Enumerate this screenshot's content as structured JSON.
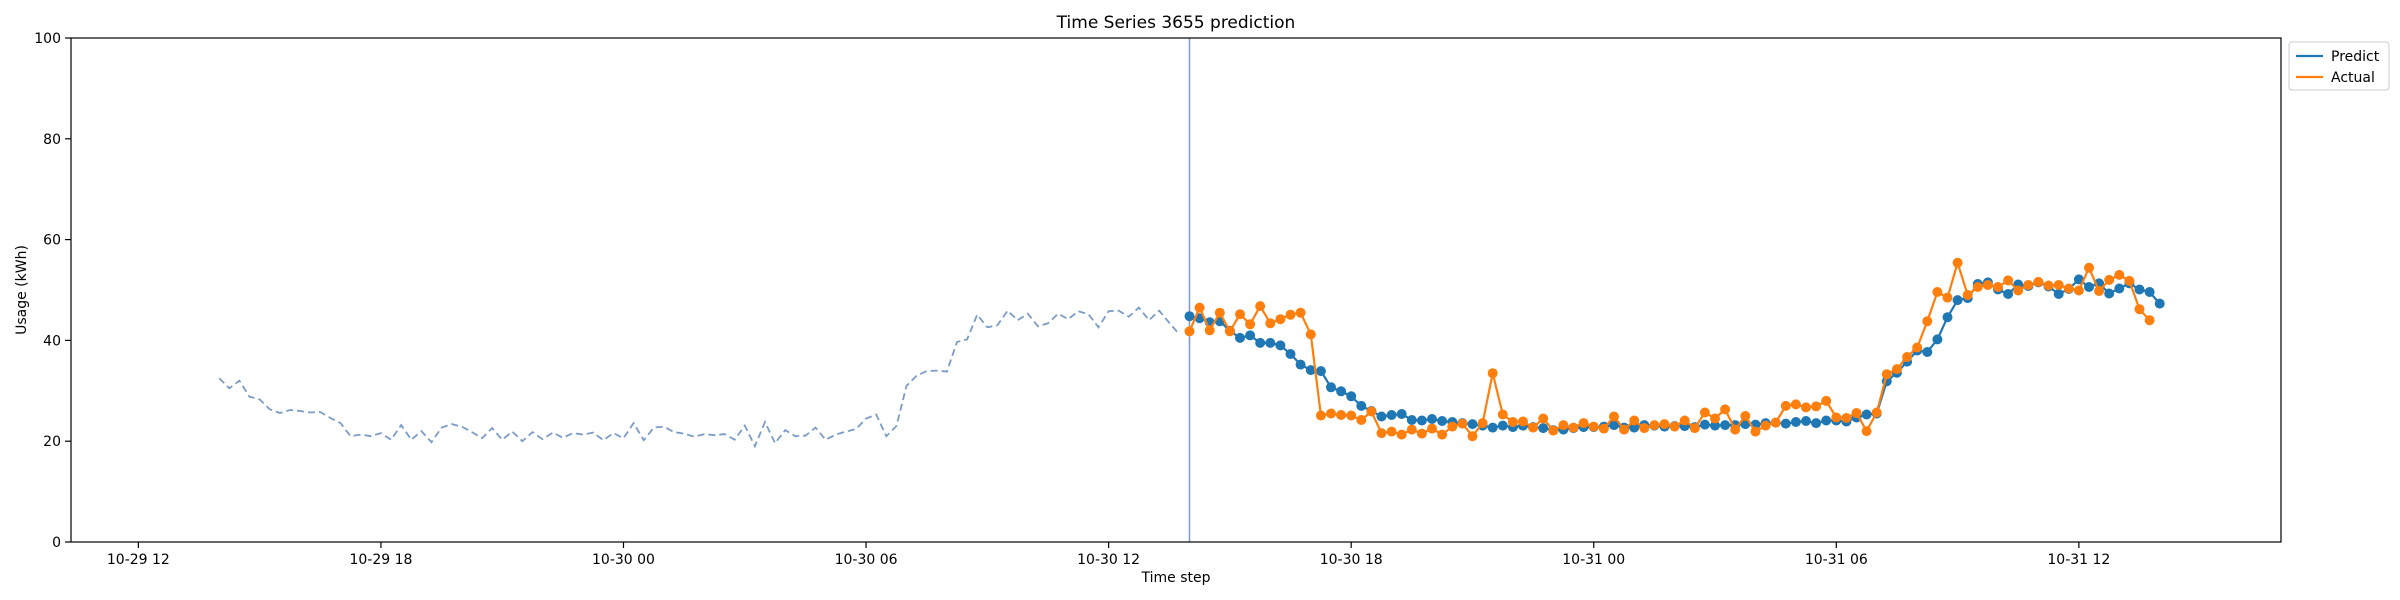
{
  "chart_data": {
    "type": "line",
    "title": "Time Series 3655 prediction",
    "xlabel": "Time step",
    "ylabel": "Usage (kWh)",
    "ylim": [
      0,
      100
    ],
    "yticks": [
      0,
      20,
      40,
      60,
      80,
      100
    ],
    "xlim": [
      "2024-10-29 10:20",
      "2024-10-31 17:00"
    ],
    "xticks": [
      {
        "t": "2024-10-29 12:00",
        "label": "10-29 12"
      },
      {
        "t": "2024-10-29 18:00",
        "label": "10-29 18"
      },
      {
        "t": "2024-10-30 00:00",
        "label": "10-30 00"
      },
      {
        "t": "2024-10-30 06:00",
        "label": "10-30 06"
      },
      {
        "t": "2024-10-30 12:00",
        "label": "10-30 12"
      },
      {
        "t": "2024-10-30 18:00",
        "label": "10-30 18"
      },
      {
        "t": "2024-10-31 00:00",
        "label": "10-31 00"
      },
      {
        "t": "2024-10-31 06:00",
        "label": "10-31 06"
      },
      {
        "t": "2024-10-31 12:00",
        "label": "10-31 12"
      }
    ],
    "grid": false,
    "legend": "top-right outside",
    "forecast_start": "2024-10-30 14:00",
    "step_minutes": 15,
    "history": {
      "start": "2024-10-29 14:00",
      "color": "#7a9cc6",
      "style": "dashed",
      "values": [
        32.5,
        30.5,
        32.0,
        28.8,
        28.3,
        26.3,
        25.6,
        26.2,
        26.0,
        25.7,
        25.8,
        24.6,
        23.6,
        21.0,
        21.3,
        21.0,
        21.6,
        20.3,
        23.2,
        20.3,
        22.0,
        19.8,
        22.7,
        23.4,
        22.9,
        21.8,
        20.6,
        22.6,
        20.3,
        21.9,
        20.0,
        21.8,
        20.4,
        21.7,
        20.7,
        21.6,
        21.3,
        21.7,
        20.2,
        21.6,
        20.6,
        23.6,
        20.2,
        22.7,
        22.9,
        21.8,
        21.5,
        20.9,
        21.4,
        21.2,
        21.4,
        20.3,
        23.1,
        19.0,
        23.8,
        19.6,
        22.2,
        21.0,
        21.1,
        22.7,
        20.3,
        21.3,
        21.9,
        22.4,
        24.5,
        25.3,
        21.0,
        23.0,
        31.0,
        33.0,
        33.9,
        34.0,
        33.8,
        39.7,
        40.2,
        45.1,
        42.6,
        43.0,
        45.9,
        44.0,
        45.3,
        42.8,
        43.4,
        45.3,
        44.2,
        45.8,
        45.2,
        42.6,
        45.8,
        45.9,
        44.7,
        46.5,
        44.0,
        45.9,
        43.5,
        41.2
      ]
    },
    "series": [
      {
        "name": "Predict",
        "color": "#1f77b4",
        "start": "2024-10-30 14:00",
        "values": [
          44.8,
          44.4,
          43.6,
          43.8,
          41.9,
          40.5,
          41.0,
          39.5,
          39.5,
          39.0,
          37.3,
          35.2,
          34.1,
          33.9,
          30.7,
          29.9,
          28.9,
          27.0,
          26.0,
          24.9,
          25.2,
          25.4,
          24.2,
          24.1,
          24.4,
          24.0,
          23.8,
          23.6,
          23.4,
          23.1,
          22.7,
          23.1,
          22.8,
          23.1,
          22.8,
          22.6,
          22.2,
          22.3,
          22.6,
          22.8,
          22.8,
          22.9,
          23.2,
          22.7,
          22.7,
          23.2,
          23.1,
          22.9,
          23.0,
          23.0,
          22.8,
          23.3,
          23.1,
          23.2,
          23.2,
          23.4,
          23.3,
          23.6,
          23.7,
          23.5,
          23.8,
          24.0,
          23.6,
          24.1,
          24.1,
          23.9,
          24.7,
          25.3,
          25.5,
          31.9,
          33.6,
          35.8,
          38.0,
          37.7,
          40.2,
          44.6,
          48.0,
          48.4,
          51.2,
          51.5,
          50.1,
          49.2,
          51.1,
          50.8,
          51.5,
          50.7,
          49.2,
          50.2,
          52.1,
          50.6,
          51.3,
          49.3,
          50.3,
          51.3,
          50.1,
          49.6,
          47.3
        ]
      },
      {
        "name": "Actual",
        "color": "#ff7f0e",
        "start": "2024-10-30 14:00",
        "values": [
          41.8,
          46.5,
          42.0,
          45.5,
          41.8,
          45.2,
          43.2,
          46.8,
          43.4,
          44.2,
          45.1,
          45.5,
          41.2,
          25.1,
          25.5,
          25.2,
          25.1,
          24.2,
          25.9,
          21.6,
          21.9,
          21.3,
          22.3,
          21.5,
          22.5,
          21.3,
          22.9,
          23.5,
          21.0,
          23.6,
          33.5,
          25.3,
          23.8,
          23.9,
          22.7,
          24.5,
          22.1,
          23.2,
          22.7,
          23.6,
          22.9,
          22.5,
          24.9,
          22.3,
          24.1,
          22.6,
          23.2,
          23.4,
          22.9,
          24.1,
          22.6,
          25.7,
          24.5,
          26.3,
          22.3,
          25.0,
          21.9,
          23.1,
          23.7,
          27.0,
          27.3,
          26.7,
          26.9,
          28.0,
          24.7,
          24.6,
          25.6,
          22.0,
          25.7,
          33.3,
          34.3,
          36.7,
          38.6,
          43.8,
          49.6,
          48.5,
          55.4,
          49.0,
          50.6,
          51.0,
          50.6,
          51.9,
          49.9,
          51.0,
          51.6,
          50.9,
          51.0,
          50.3,
          49.9,
          54.4,
          49.8,
          52.0,
          53.0,
          51.8,
          46.2,
          44.0
        ]
      }
    ]
  }
}
